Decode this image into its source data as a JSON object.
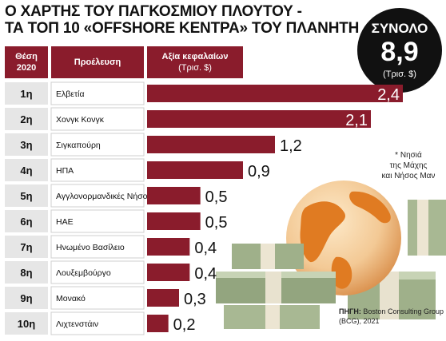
{
  "title": {
    "line1": "Ο ΧΑΡΤΗΣ ΤΟΥ ΠΑΓΚΟΣΜΙΟΥ ΠΛΟΥΤΟΥ -",
    "line2": "ΤΑ ΤΟΠ 10 «OFFSHORE ΚΕΝΤΡΑ» ΤΟΥ ΠΛΑΝΗΤΗ"
  },
  "total": {
    "label": "ΣΥΝΟΛΟ",
    "value": "8,9",
    "unit": "(Τρισ. $)"
  },
  "headers": {
    "rank_line1": "Θέση",
    "rank_line2": "2020",
    "origin": "Προέλευση",
    "assets": "Αξία κεφαλαίων",
    "assets_unit": "(Τρισ. $)"
  },
  "note": {
    "line1": "* Νησιά",
    "line2": "της Μάχης",
    "line3": "και Νήσος Μαν"
  },
  "source": {
    "label": "ΠΗΓΗ:",
    "text": "Boston Consulting Group (BCG), 2021"
  },
  "colors": {
    "accent": "#8a1c2c",
    "rank_bg": "#e6e6e6",
    "text": "#111111"
  },
  "chart_data": {
    "type": "bar",
    "orientation": "horizontal",
    "ranks": [
      "1η",
      "2η",
      "3η",
      "4η",
      "5η",
      "6η",
      "7η",
      "8η",
      "9η",
      "10η"
    ],
    "categories": [
      "Ελβετία",
      "Χονγκ Κονγκ",
      "Σιγκαπούρη",
      "ΗΠΑ",
      "Αγγλονορμανδικές Νήσοι*",
      "ΗΑΕ",
      "Ηνωμένο Βασίλειο",
      "Λουξεμβούργο",
      "Μονακό",
      "Λιχτενστάιν"
    ],
    "values": [
      2.4,
      2.1,
      1.2,
      0.9,
      0.5,
      0.5,
      0.4,
      0.4,
      0.3,
      0.2
    ],
    "value_labels": [
      "2,4",
      "2,1",
      "1,2",
      "0,9",
      "0,5",
      "0,5",
      "0,4",
      "0,4",
      "0,3",
      "0,2"
    ],
    "xlim": [
      0,
      2.4
    ]
  }
}
